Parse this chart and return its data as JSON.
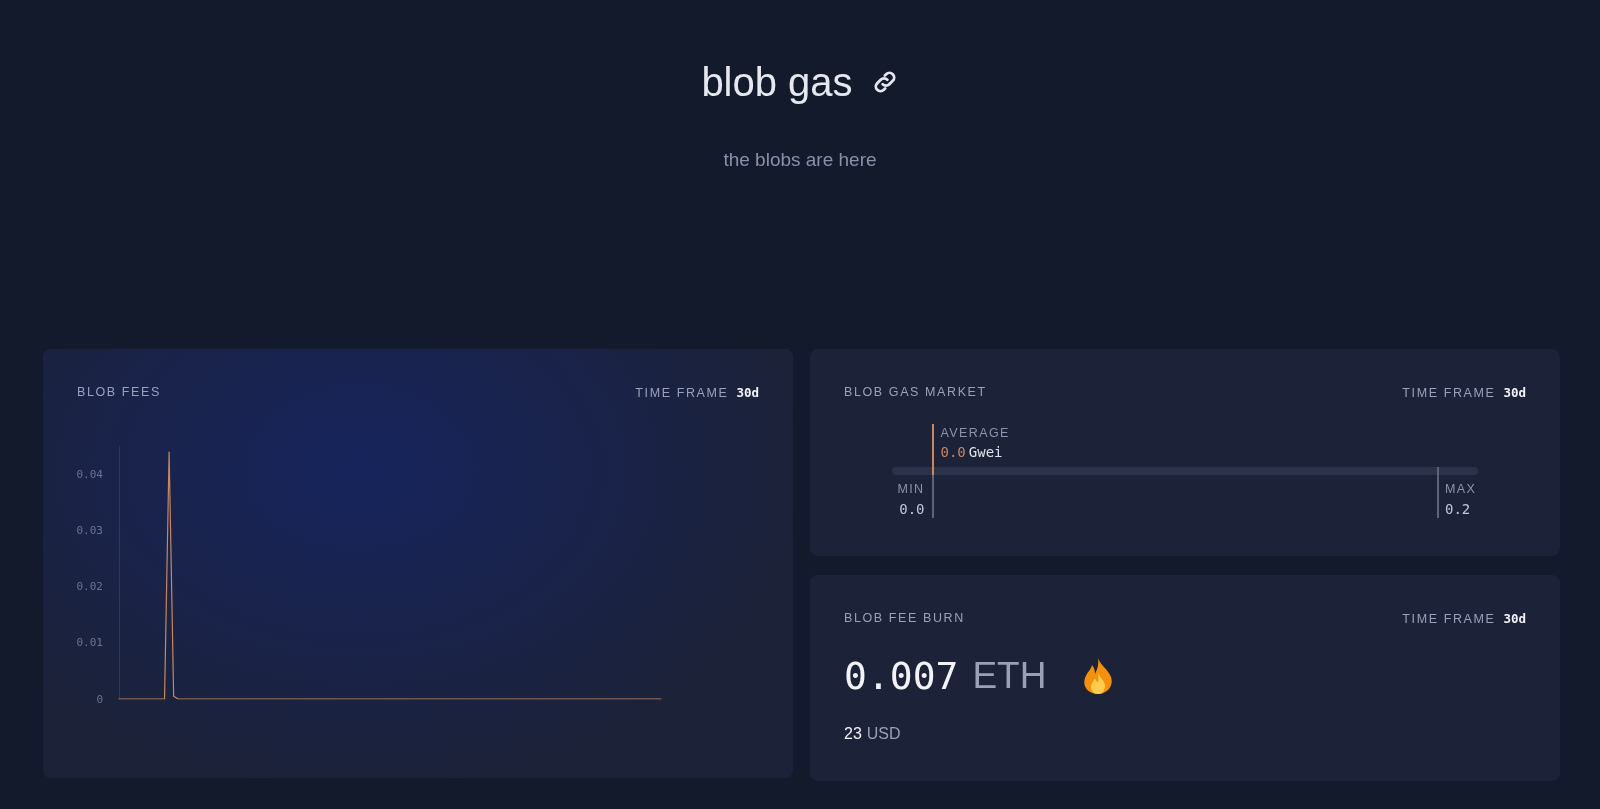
{
  "chart_data": [
    {
      "type": "other",
      "title": "blob gas",
      "subtitle": "the blobs are here"
    },
    {
      "type": "line",
      "title": "BLOB FEES",
      "annotations": [
        "TIME FRAME",
        "30d"
      ],
      "categories": [
        null,
        null,
        null,
        null,
        null,
        null,
        null,
        null,
        null,
        null,
        null,
        null,
        null,
        null,
        null,
        null,
        null,
        null,
        null,
        null,
        null,
        null,
        null,
        null,
        null,
        null,
        null,
        null,
        null,
        null,
        null,
        null,
        null,
        null,
        null,
        null,
        null,
        null,
        null,
        null,
        null,
        null,
        null,
        null,
        null,
        null,
        null,
        null,
        null,
        null,
        null,
        null,
        null,
        null,
        null,
        null,
        null,
        null,
        null,
        null,
        null,
        null,
        null,
        null,
        null,
        null,
        null,
        null,
        null,
        null,
        null,
        null,
        null,
        null,
        null,
        null,
        null,
        null,
        null,
        null,
        null,
        null,
        null,
        null,
        null,
        null,
        null,
        null,
        null,
        null,
        null,
        null,
        null,
        null,
        null,
        null,
        null,
        null,
        null,
        null,
        null,
        null,
        null,
        null,
        null,
        null,
        null,
        null,
        null,
        null,
        null,
        null,
        null,
        null,
        null,
        null,
        null,
        null,
        null,
        null
      ],
      "values": [
        0,
        0,
        0,
        0,
        0,
        0,
        0,
        0,
        0,
        0,
        0,
        0.044,
        0.0005,
        0,
        0,
        0,
        0,
        0,
        0,
        0,
        0,
        0,
        0,
        0,
        0,
        0,
        0,
        0,
        0,
        0,
        0,
        0,
        0,
        0,
        0,
        0,
        0,
        0,
        0,
        0,
        0,
        0,
        0,
        0,
        0,
        0,
        0,
        0,
        0,
        0,
        0,
        0,
        0,
        0,
        0,
        0,
        0,
        0,
        0,
        0,
        0,
        0,
        0,
        0,
        0,
        0,
        0,
        0,
        0,
        0,
        0,
        0,
        0,
        0,
        0,
        0,
        0,
        0,
        0,
        0,
        0,
        0,
        0,
        0,
        0,
        0,
        0,
        0,
        0,
        0,
        0,
        0,
        0,
        0,
        0,
        0,
        0,
        0,
        0,
        0,
        0,
        0,
        0,
        0,
        0,
        0,
        0,
        0,
        0,
        0,
        0,
        0,
        0,
        0,
        0,
        0,
        0,
        0,
        0,
        0
      ],
      "color": "#c8875f",
      "ylim": [
        0,
        0.045
      ],
      "yticks": [
        0,
        0.01,
        0.02,
        0.03,
        0.04
      ],
      "tick_labels": "y",
      "marker": "none"
    },
    {
      "type": "other",
      "title": "BLOB GAS MARKET",
      "annotations": [
        "TIME FRAME",
        "30d"
      ],
      "categories": [
        "MIN",
        "AVERAGE",
        "MAX"
      ],
      "values": [
        0,
        0,
        0.2
      ],
      "value_labels": [
        "0.0",
        "0.0",
        "0.2"
      ],
      "xlabel": "Gwei"
    },
    {
      "type": "other",
      "title": "BLOB FEE BURN",
      "annotations": [
        "TIME FRAME",
        "30d"
      ],
      "categories": [
        "ETH",
        "USD"
      ],
      "values": [
        0.007,
        23
      ],
      "data_labels": true
    }
  ]
}
